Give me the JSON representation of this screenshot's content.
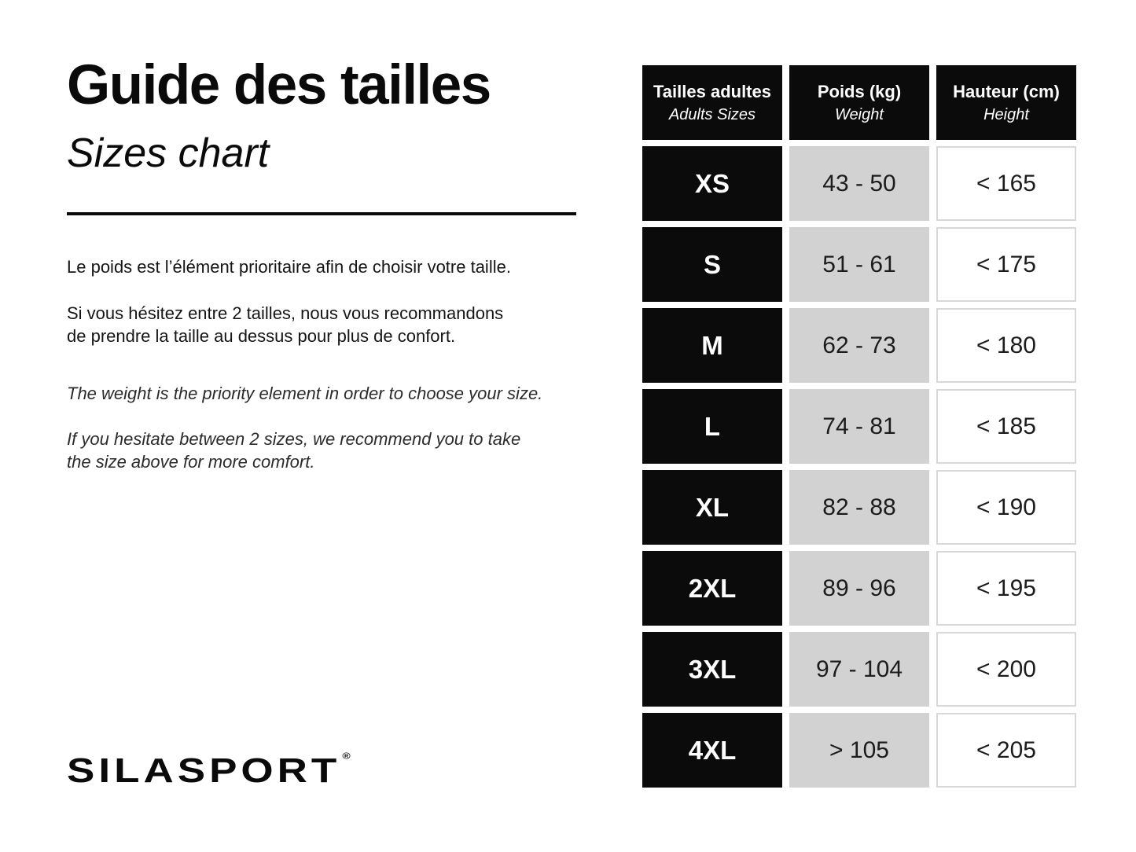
{
  "title": {
    "fr": "Guide des tailles",
    "en": "Sizes chart"
  },
  "intro": {
    "fr_p1": "Le poids est l’élément prioritaire afin de choisir votre taille.",
    "fr_p2_line1": "Si vous hésitez entre 2 tailles, nous vous recommandons",
    "fr_p2_line2": "de prendre la taille au dessus pour plus de confort.",
    "en_p1": "The weight is the priority element in order to choose your size.",
    "en_p2_line1": "If you hesitate between 2 sizes, we recommend you to take",
    "en_p2_line2": "the size above for more comfort."
  },
  "brand": {
    "name": "SILASPORT",
    "registered": "®"
  },
  "table": {
    "headers": [
      {
        "primary": "Tailles adultes",
        "secondary": "Adults Sizes"
      },
      {
        "primary": "Poids (kg)",
        "secondary": "Weight"
      },
      {
        "primary": "Hauteur (cm)",
        "secondary": "Height"
      }
    ],
    "rows": [
      {
        "size": "XS",
        "weight": "43 - 50",
        "height": "< 165"
      },
      {
        "size": "S",
        "weight": "51 - 61",
        "height": "< 175"
      },
      {
        "size": "M",
        "weight": "62 - 73",
        "height": "< 180"
      },
      {
        "size": "L",
        "weight": "74 - 81",
        "height": "< 185"
      },
      {
        "size": "XL",
        "weight": "82 - 88",
        "height": "< 190"
      },
      {
        "size": "2XL",
        "weight": "89 - 96",
        "height": "< 195"
      },
      {
        "size": "3XL",
        "weight": "97 - 104",
        "height": "< 200"
      },
      {
        "size": "4XL",
        "weight": "> 105",
        "height": "< 205"
      }
    ]
  },
  "colors": {
    "cell_black": "#0b0b0b",
    "cell_gray": "#d2d2d2",
    "height_border": "#d8d8d8",
    "text": "#111111",
    "background": "#ffffff"
  }
}
